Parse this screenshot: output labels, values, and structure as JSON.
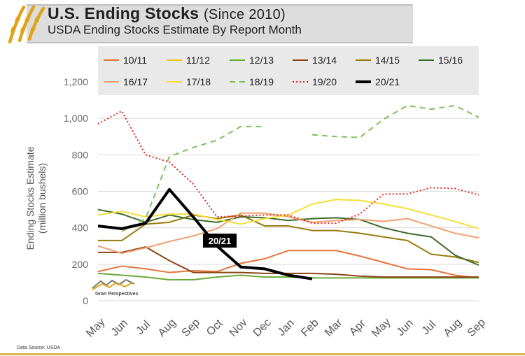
{
  "header": {
    "title": "U.S. Ending Stocks",
    "title_paren": "(Since 2010)",
    "subtitle": "USDA Ending Stocks Estimate By Report Month"
  },
  "footer": {
    "source": "Data Source: USDA",
    "brand": "Gran Perspectives"
  },
  "chart_data": {
    "type": "line",
    "ylabel": "Ending Stocks Estimate (million bushels)",
    "ylabel_line1": "Ending Stocks Estimate",
    "ylabel_line2": "(million bushels)",
    "ylim": [
      0,
      1200
    ],
    "yticks": [
      "0",
      "200",
      "400",
      "600",
      "800",
      "1,000",
      "1,200"
    ],
    "yticks_values": [
      0,
      200,
      400,
      600,
      800,
      1000,
      1200
    ],
    "x": [
      "May",
      "Jun",
      "Jul",
      "Aug",
      "Sep",
      "Oct",
      "Nov",
      "Dec",
      "Jan",
      "Feb",
      "Mar",
      "Apr",
      "May",
      "Jun",
      "Jul",
      "Aug",
      "Sep"
    ],
    "grid": "horizontal",
    "legend_position": "top",
    "annotation": "20/21",
    "series": [
      {
        "name": "10/11",
        "color": "#e8733a",
        "dash": "solid",
        "width": 2,
        "values": [
          160,
          190,
          175,
          155,
          165,
          160,
          205,
          230,
          275,
          275,
          275,
          245,
          210,
          175,
          170,
          140,
          125
        ]
      },
      {
        "name": "11/12",
        "color": "#f5c21a",
        "dash": "solid",
        "width": 2,
        "values": [
          null,
          null,
          null,
          null,
          null,
          null,
          null,
          null,
          null,
          null,
          null,
          null,
          null,
          null,
          null,
          null,
          null
        ]
      },
      {
        "name": "12/13",
        "color": "#6aaa3a",
        "dash": "solid",
        "width": 2,
        "values": [
          150,
          140,
          130,
          115,
          115,
          130,
          140,
          130,
          130,
          125,
          125,
          125,
          125,
          125,
          125,
          125,
          125
        ]
      },
      {
        "name": "13/14",
        "color": "#8b4513",
        "dash": "solid",
        "width": 2,
        "values": [
          265,
          265,
          295,
          220,
          155,
          155,
          155,
          150,
          150,
          150,
          145,
          135,
          130,
          130,
          130,
          130,
          130
        ]
      },
      {
        "name": "14/15",
        "color": "#9a7b0a",
        "dash": "solid",
        "width": 2,
        "values": [
          330,
          330,
          420,
          430,
          470,
          450,
          470,
          410,
          410,
          385,
          385,
          370,
          350,
          330,
          255,
          240,
          210
        ]
      },
      {
        "name": "15/16",
        "color": "#3e6b2a",
        "dash": "solid",
        "width": 2,
        "values": [
          500,
          475,
          430,
          470,
          445,
          430,
          460,
          455,
          440,
          450,
          455,
          445,
          400,
          370,
          350,
          250,
          195
        ]
      },
      {
        "name": "16/17",
        "color": "#f0a070",
        "dash": "solid",
        "width": 2,
        "values": [
          300,
          260,
          290,
          325,
          355,
          395,
          480,
          480,
          460,
          430,
          440,
          445,
          435,
          450,
          410,
          370,
          345
        ]
      },
      {
        "name": "17/18",
        "color": "#f5de3a",
        "dash": "solid",
        "width": 2,
        "values": [
          470,
          490,
          460,
          475,
          475,
          445,
          420,
          450,
          470,
          530,
          555,
          550,
          530,
          505,
          470,
          435,
          395
        ]
      },
      {
        "name": "18/19",
        "color": "#7cc05a",
        "dash": "dashed",
        "width": 2,
        "values": [
          null,
          380,
          450,
          790,
          840,
          880,
          955,
          955,
          null,
          910,
          900,
          895,
          995,
          1070,
          1050,
          1070,
          1005
        ]
      },
      {
        "name": "19/20",
        "color": "#e8241e",
        "dash": "dotted",
        "width": 2,
        "values": [
          970,
          1040,
          800,
          760,
          640,
          460,
          465,
          470,
          470,
          425,
          425,
          475,
          585,
          585,
          620,
          615,
          580
        ]
      },
      {
        "name": "20/21",
        "color": "#000000",
        "dash": "solid",
        "width": 4,
        "values": [
          410,
          395,
          425,
          610,
          460,
          300,
          185,
          175,
          140,
          120,
          null,
          null,
          null,
          null,
          null,
          null,
          null
        ]
      }
    ]
  }
}
